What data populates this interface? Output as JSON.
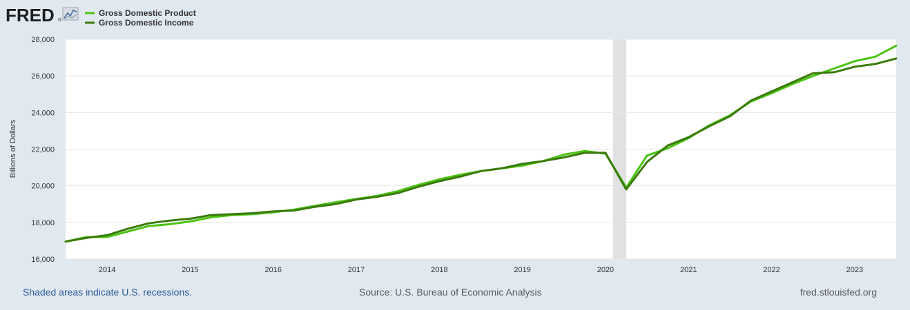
{
  "logo": {
    "text": "FRED",
    "trademark": "®"
  },
  "footer": {
    "recession_note": "Shaded areas indicate U.S. recessions.",
    "source": "Source: U.S. Bureau of Economic Analysis",
    "site": "fred.stlouisfed.org"
  },
  "chart_data": {
    "type": "line",
    "title": "",
    "xlabel": "",
    "ylabel": "Billions of Dollars",
    "xlim": [
      2013.5,
      2023.5
    ],
    "ylim": [
      16000,
      28000
    ],
    "y_ticks": [
      16000,
      18000,
      20000,
      22000,
      24000,
      26000,
      28000
    ],
    "y_tick_labels": [
      "16,000",
      "18,000",
      "20,000",
      "22,000",
      "24,000",
      "26,000",
      "28,000"
    ],
    "x_ticks": [
      2014,
      2015,
      2016,
      2017,
      2018,
      2019,
      2020,
      2021,
      2022,
      2023
    ],
    "x_tick_labels": [
      "2014",
      "2015",
      "2016",
      "2017",
      "2018",
      "2019",
      "2020",
      "2021",
      "2022",
      "2023"
    ],
    "grid": true,
    "legend_position": "top-left",
    "recessions": [
      {
        "start": 2020.09,
        "end": 2020.25
      }
    ],
    "x": [
      2013.5,
      2013.75,
      2014.0,
      2014.25,
      2014.5,
      2014.75,
      2015.0,
      2015.25,
      2015.5,
      2015.75,
      2016.0,
      2016.25,
      2016.5,
      2016.75,
      2017.0,
      2017.25,
      2017.5,
      2017.75,
      2018.0,
      2018.25,
      2018.5,
      2018.75,
      2019.0,
      2019.25,
      2019.5,
      2019.75,
      2020.0,
      2020.25,
      2020.5,
      2020.75,
      2021.0,
      2021.25,
      2021.5,
      2021.75,
      2022.0,
      2022.25,
      2022.5,
      2022.75,
      2023.0,
      2023.25,
      2023.5
    ],
    "series": [
      {
        "name": "Gross Domestic Product",
        "color": "#4cc312",
        "values": [
          16950,
          17200,
          17200,
          17500,
          17800,
          17900,
          18050,
          18280,
          18400,
          18450,
          18550,
          18700,
          18900,
          19100,
          19280,
          19450,
          19700,
          20050,
          20350,
          20600,
          20800,
          20950,
          21100,
          21350,
          21700,
          21900,
          21750,
          19900,
          21650,
          22050,
          22600,
          23300,
          23850,
          24600,
          25050,
          25550,
          26000,
          26400,
          26800,
          27050,
          27650
        ]
      },
      {
        "name": "Gross Domestic Income",
        "color": "#3a7a0a",
        "values": [
          16950,
          17150,
          17300,
          17650,
          17950,
          18100,
          18200,
          18400,
          18450,
          18500,
          18600,
          18650,
          18850,
          19000,
          19250,
          19400,
          19600,
          19950,
          20250,
          20500,
          20800,
          20950,
          21200,
          21350,
          21550,
          21800,
          21800,
          19800,
          21300,
          22200,
          22650,
          23250,
          23800,
          24650,
          25150,
          25650,
          26150,
          26200,
          26500,
          26650,
          26950
        ]
      }
    ]
  }
}
